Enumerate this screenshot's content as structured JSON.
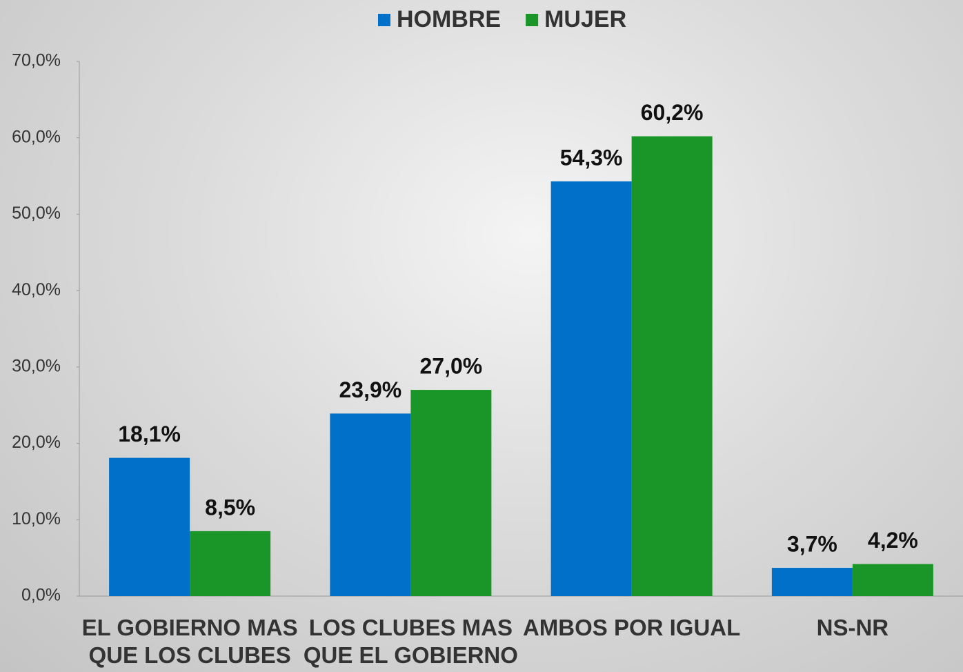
{
  "chart_data": {
    "type": "bar",
    "categories": [
      "EL GOBIERNO MAS QUE LOS CLUBES",
      "LOS CLUBES MAS QUE EL GOBIERNO",
      "AMBOS POR IGUAL",
      "NS-NR"
    ],
    "series": [
      {
        "name": "HOMBRE",
        "color": "#0070c8",
        "values": [
          18.1,
          23.9,
          54.3,
          3.7
        ],
        "value_labels": [
          "18,1%",
          "23,9%",
          "54,3%",
          "3,7%"
        ]
      },
      {
        "name": "MUJER",
        "color": "#1a9528",
        "values": [
          8.5,
          27.0,
          60.2,
          4.2
        ],
        "value_labels": [
          "8,5%",
          "27,0%",
          "60,2%",
          "4,2%"
        ]
      }
    ],
    "ylim": [
      0,
      70
    ],
    "yticks": [
      {
        "value": 0,
        "label": "0,0%"
      },
      {
        "value": 10,
        "label": "10,0%"
      },
      {
        "value": 20,
        "label": "20,0%"
      },
      {
        "value": 30,
        "label": "30,0%"
      },
      {
        "value": 40,
        "label": "40,0%"
      },
      {
        "value": 50,
        "label": "50,0%"
      },
      {
        "value": 60,
        "label": "60,0%"
      },
      {
        "value": 70,
        "label": "70,0%"
      }
    ],
    "legend": "top"
  }
}
